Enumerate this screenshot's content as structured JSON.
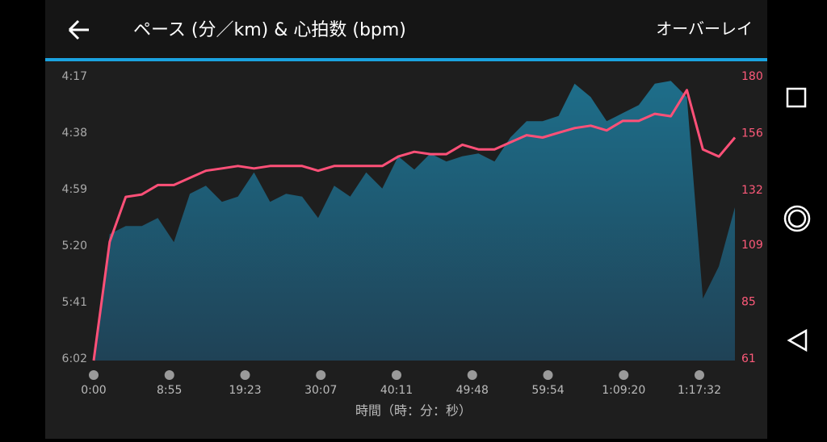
{
  "header": {
    "title": "ペース (分／km) & 心拍数 (bpm)",
    "action": "オーバーレイ"
  },
  "chart_data": {
    "type": "combo",
    "x_label": "時間（時：分：秒）",
    "xticks": [
      "0:00",
      "8:55",
      "19:23",
      "30:07",
      "40:11",
      "49:48",
      "59:54",
      "1:09:20",
      "1:17:32"
    ],
    "ylim": [
      257,
      362
    ],
    "y_inverted": true,
    "yticks": [
      {
        "value": 257,
        "label": "4:17"
      },
      {
        "value": 278,
        "label": "4:38"
      },
      {
        "value": 299,
        "label": "4:59"
      },
      {
        "value": 320,
        "label": "5:20"
      },
      {
        "value": 341,
        "label": "5:41"
      },
      {
        "value": 362,
        "label": "6:02"
      }
    ],
    "y2lim": [
      61,
      180
    ],
    "y2ticks": [
      180,
      156,
      132,
      109,
      85,
      61
    ],
    "series": [
      {
        "type": "area",
        "axis": "y",
        "color": "#1e6e8a",
        "values": [
          362,
          315,
          312,
          312,
          309,
          318,
          300,
          297,
          303,
          301,
          292,
          303,
          300,
          301,
          309,
          297,
          301,
          292,
          298,
          286,
          291,
          285,
          288,
          286,
          285,
          288,
          279,
          273,
          273,
          271,
          259,
          264,
          273,
          270,
          267,
          259,
          258,
          264,
          339,
          327,
          305
        ]
      },
      {
        "type": "line",
        "axis": "y2",
        "color": "#ff5078",
        "values": [
          61,
          111,
          130,
          131,
          135,
          135,
          138,
          141,
          142,
          143,
          142,
          143,
          143,
          143,
          141,
          143,
          143,
          143,
          143,
          147,
          149,
          148,
          148,
          152,
          150,
          150,
          153,
          156,
          155,
          157,
          159,
          160,
          158,
          162,
          162,
          165,
          164,
          175,
          150,
          147,
          155
        ]
      }
    ]
  }
}
